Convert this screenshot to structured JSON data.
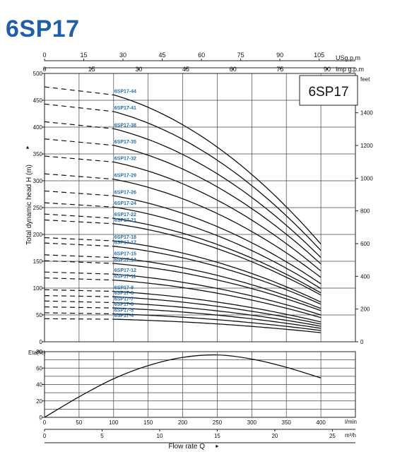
{
  "page_title": "6SP17",
  "colors": {
    "title": "#1f5fa8",
    "curve_label": "#1f6fb0",
    "ink": "#111111",
    "grid": "#444444"
  },
  "chart_data": [
    {
      "type": "line",
      "box_title": "6SP17",
      "ylabel": "Total dynamic head H (m)",
      "ylim": [
        0,
        500
      ],
      "y_ticks": [
        0,
        50,
        100,
        150,
        200,
        250,
        300,
        350,
        400,
        450,
        500
      ],
      "right_axis": {
        "unit_label": "feet",
        "ticks": [
          0,
          200,
          400,
          600,
          800,
          1000,
          1200,
          1400
        ]
      },
      "top_axis_usgpm": {
        "unit_label": "USg.p.m",
        "ticks": [
          0,
          15,
          30,
          45,
          60,
          75,
          90,
          105
        ]
      },
      "top_axis_impgpm": {
        "unit_label": "Imp g.p.m",
        "ticks": [
          0,
          15,
          30,
          45,
          60,
          75,
          90
        ]
      },
      "x_unit": "l/min",
      "xlim": [
        0,
        450
      ],
      "grid": true,
      "series": [
        {
          "name": "6SP17-44",
          "shutoff": 475,
          "bep_head": 460,
          "end_head": 182
        },
        {
          "name": "6SP17-41",
          "shutoff": 443,
          "bep_head": 429,
          "end_head": 170
        },
        {
          "name": "6SP17-38",
          "shutoff": 410,
          "bep_head": 397,
          "end_head": 157
        },
        {
          "name": "6SP17-35",
          "shutoff": 378,
          "bep_head": 366,
          "end_head": 145
        },
        {
          "name": "6SP17-32",
          "shutoff": 346,
          "bep_head": 335,
          "end_head": 132
        },
        {
          "name": "6SP17-29",
          "shutoff": 313,
          "bep_head": 303,
          "end_head": 120
        },
        {
          "name": "6SP17-26",
          "shutoff": 281,
          "bep_head": 272,
          "end_head": 108
        },
        {
          "name": "6SP17-24",
          "shutoff": 259,
          "bep_head": 251,
          "end_head": 99
        },
        {
          "name": "6SP17-22",
          "shutoff": 238,
          "bep_head": 230,
          "end_head": 91
        },
        {
          "name": "6SP17-21",
          "shutoff": 227,
          "bep_head": 220,
          "end_head": 87
        },
        {
          "name": "6SP17-18",
          "shutoff": 194,
          "bep_head": 188,
          "end_head": 74
        },
        {
          "name": "6SP17-17",
          "shutoff": 184,
          "bep_head": 178,
          "end_head": 70
        },
        {
          "name": "6SP17-15",
          "shutoff": 162,
          "bep_head": 157,
          "end_head": 62
        },
        {
          "name": "6SP17-14",
          "shutoff": 151,
          "bep_head": 146,
          "end_head": 58
        },
        {
          "name": "6SP17-12",
          "shutoff": 130,
          "bep_head": 126,
          "end_head": 50
        },
        {
          "name": "6SP17-11",
          "shutoff": 119,
          "bep_head": 115,
          "end_head": 45
        },
        {
          "name": "6SP17-9",
          "shutoff": 97,
          "bep_head": 94,
          "end_head": 37
        },
        {
          "name": "6SP17-8",
          "shutoff": 86,
          "bep_head": 84,
          "end_head": 33
        },
        {
          "name": "6SP17-7",
          "shutoff": 76,
          "bep_head": 73,
          "end_head": 29
        },
        {
          "name": "6SP17-6",
          "shutoff": 65,
          "bep_head": 63,
          "end_head": 25
        },
        {
          "name": "6SP17-5",
          "shutoff": 54,
          "bep_head": 52,
          "end_head": 21
        },
        {
          "name": "6SP17-4",
          "shutoff": 43,
          "bep_head": 42,
          "end_head": 17
        }
      ]
    },
    {
      "type": "line",
      "ylabel": "Eta(%)",
      "ylim": [
        0,
        80
      ],
      "y_ticks": [
        0,
        20,
        40,
        60,
        80
      ],
      "xlim": [
        0,
        450
      ],
      "x_ticks": [
        0,
        50,
        100,
        150,
        200,
        250,
        300,
        350,
        400
      ],
      "x_unit": "l/min",
      "grid": true,
      "series": [
        {
          "x": [
            0,
            50,
            100,
            150,
            200,
            250,
            300,
            350,
            400
          ],
          "values": [
            0,
            25,
            47,
            63,
            73,
            76,
            71,
            61,
            48
          ]
        }
      ]
    },
    {
      "type": "axis",
      "unit_label": "m³/h",
      "ticks": [
        0,
        5,
        10,
        15,
        20,
        25
      ],
      "xlabel": "Flow rate Q"
    }
  ]
}
